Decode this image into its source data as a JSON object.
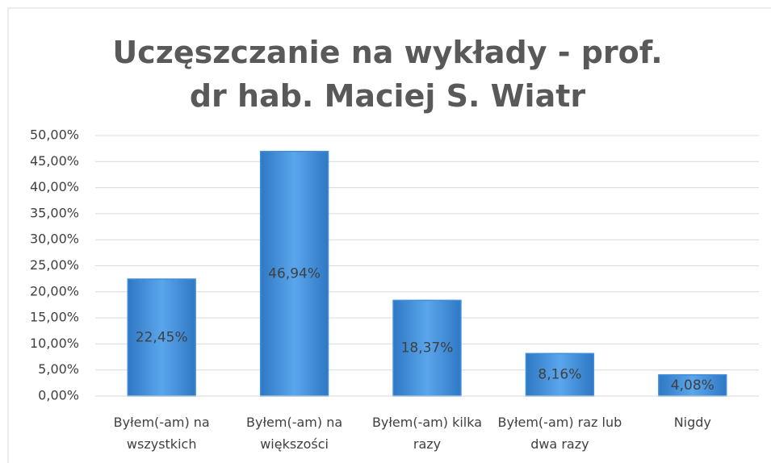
{
  "chart_data": {
    "type": "bar",
    "title": "Uczęszczanie na wykłady - prof. dr hab. Maciej S. Wiatr",
    "categories": [
      "Byłem(-am) na wszystkich",
      "Byłem(-am) na większości",
      "Byłem(-am) kilka razy",
      "Byłem(-am) raz lub dwa razy",
      "Nigdy"
    ],
    "values": [
      22.45,
      46.94,
      18.37,
      8.16,
      4.08
    ],
    "value_labels": [
      "22,45%",
      "46,94%",
      "18,37%",
      "8,16%",
      "4,08%"
    ],
    "color": "#3f8fdc",
    "ylim": [
      0,
      50
    ],
    "yticks": [
      {
        "value": 0,
        "label": "0,00%"
      },
      {
        "value": 5,
        "label": "5,00%"
      },
      {
        "value": 10,
        "label": "10,00%"
      },
      {
        "value": 15,
        "label": "15,00%"
      },
      {
        "value": 20,
        "label": "20,00%"
      },
      {
        "value": 25,
        "label": "25,00%"
      },
      {
        "value": 30,
        "label": "30,00%"
      },
      {
        "value": 35,
        "label": "35,00%"
      },
      {
        "value": 40,
        "label": "40,00%"
      },
      {
        "value": 45,
        "label": "45,00%"
      },
      {
        "value": 50,
        "label": "50,00%"
      }
    ],
    "grid": true
  }
}
